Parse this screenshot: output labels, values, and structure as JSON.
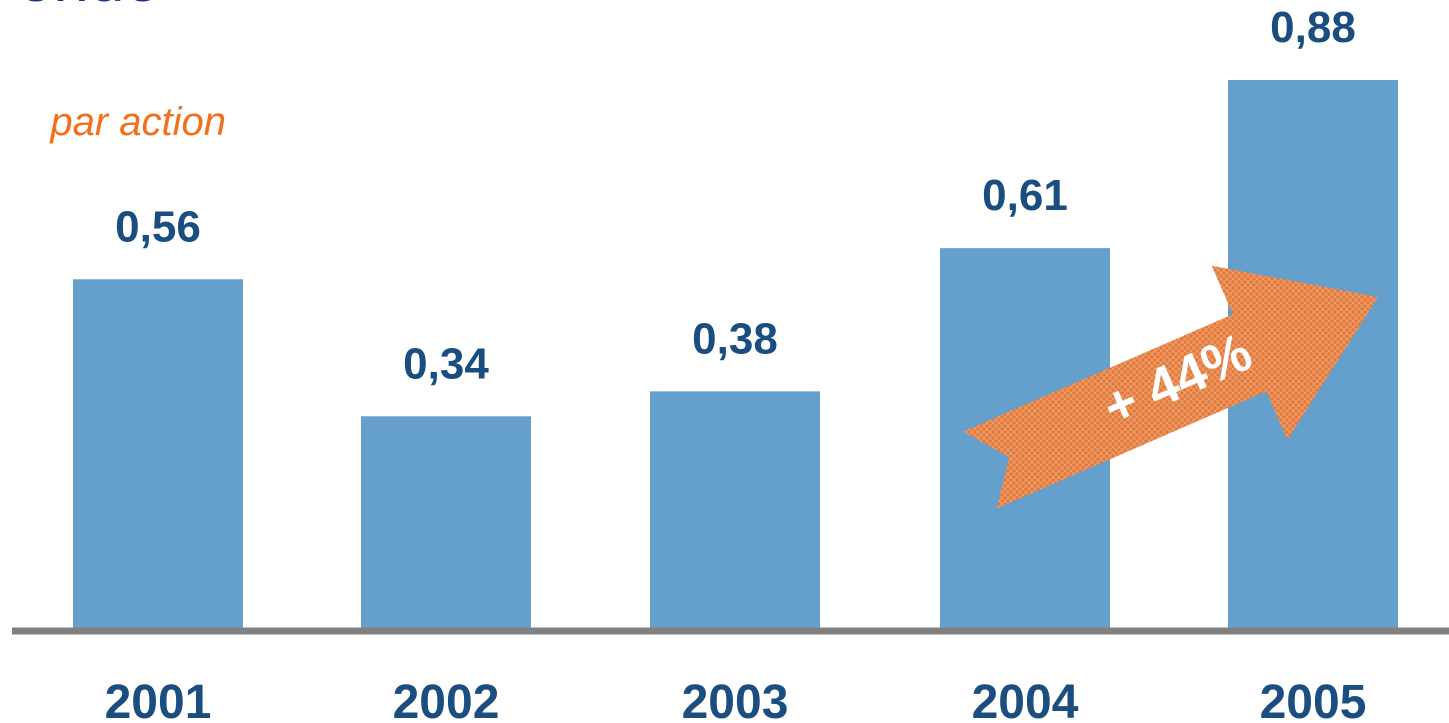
{
  "header": {
    "title": "ende",
    "subtitle": "par action"
  },
  "chart_data": {
    "type": "bar",
    "title": "",
    "xlabel": "",
    "ylabel": "",
    "categories": [
      "2001",
      "2002",
      "2003",
      "2004",
      "2005"
    ],
    "values": [
      0.56,
      0.34,
      0.38,
      0.61,
      0.88
    ],
    "value_labels": [
      "0,56",
      "0,34",
      "0,38",
      "0,61",
      "0,88"
    ],
    "ylim": [
      0,
      0.88
    ],
    "grid": false,
    "bar_color": "#659fcb",
    "label_color": "#1a4d80",
    "axis_color": "#808080",
    "annotation": {
      "text": "+ 44%",
      "from": "2004",
      "to": "2005",
      "color": "#e2793a"
    }
  }
}
